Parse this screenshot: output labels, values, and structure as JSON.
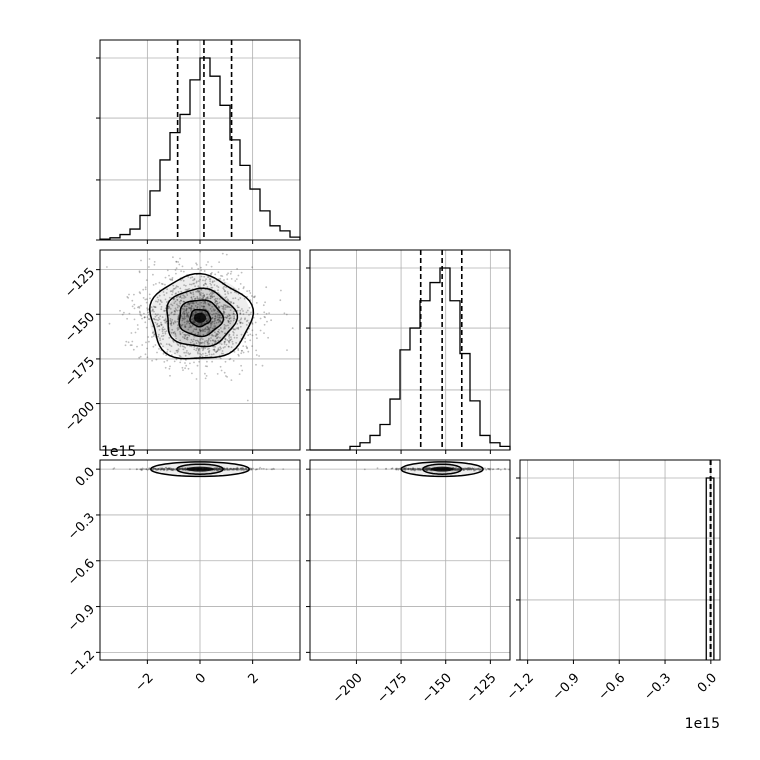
{
  "chart_data": {
    "type": "corner",
    "grid": true,
    "colors": {
      "line": "#000000",
      "grid": "#b0b0b0",
      "points": "#444444",
      "frame": "#000000"
    },
    "parameters": [
      {
        "index": 0,
        "range": [
          -3.8,
          3.8
        ],
        "ticks": [
          -2,
          0,
          2
        ],
        "tick_labels": [
          "−2",
          "0",
          "2"
        ]
      },
      {
        "index": 1,
        "range": [
          -226,
          -114
        ],
        "ticks": [
          -200,
          -175,
          -150,
          -125
        ],
        "tick_labels": [
          "−200",
          "−175",
          "−150",
          "−125"
        ]
      },
      {
        "index": 2,
        "range": [
          -1.25,
          0.06
        ],
        "ticks": [
          -1.2,
          -0.9,
          -0.6,
          -0.3,
          0.0
        ],
        "tick_labels": [
          "−1.2",
          "−0.9",
          "−0.6",
          "−0.3",
          "0.0"
        ],
        "offset_text": "1e15"
      }
    ],
    "histograms": [
      {
        "param": 0,
        "bins": [
          -3.8,
          -3.42,
          -3.04,
          -2.66,
          -2.28,
          -1.9,
          -1.52,
          -1.14,
          -0.76,
          -0.38,
          0.0,
          0.38,
          0.76,
          1.14,
          1.52,
          1.9,
          2.28,
          2.66,
          3.04,
          3.42,
          3.8
        ],
        "counts": [
          0.005,
          0.012,
          0.03,
          0.06,
          0.135,
          0.27,
          0.44,
          0.59,
          0.69,
          0.88,
          1.0,
          0.9,
          0.74,
          0.55,
          0.41,
          0.28,
          0.16,
          0.078,
          0.05,
          0.016
        ],
        "quantiles": [
          -0.85,
          0.15,
          1.2
        ]
      },
      {
        "param": 1,
        "bins": [
          -226,
          -220.4,
          -214.8,
          -209.2,
          -203.6,
          -198,
          -192.4,
          -186.8,
          -181.2,
          -175.6,
          -170,
          -164.4,
          -158.8,
          -153.2,
          -147.6,
          -142,
          -136.4,
          -130.8,
          -125.2,
          -119.6,
          -114
        ],
        "counts": [
          0.0,
          0.0,
          0.0,
          0.0,
          0.02,
          0.04,
          0.08,
          0.14,
          0.28,
          0.55,
          0.67,
          0.82,
          0.92,
          1.0,
          0.82,
          0.53,
          0.27,
          0.08,
          0.04,
          0.02
        ],
        "quantiles": [
          -164,
          -152,
          -141
        ]
      },
      {
        "param": 2,
        "bins": [
          -0.03,
          0.0,
          0.02
        ],
        "counts": [
          1.0,
          1.0
        ],
        "quantiles": [
          -0.003,
          0.0
        ]
      }
    ],
    "scatter_panels": [
      {
        "x_param": 0,
        "y_param": 1,
        "center": [
          0.0,
          -152
        ],
        "spread": [
          1.1,
          13.5
        ],
        "contour_radii": [
          0.35,
          0.75,
          1.2,
          1.75
        ]
      },
      {
        "x_param": 0,
        "y_param": 2,
        "center": [
          0.0,
          0.0
        ],
        "spread": [
          1.1,
          0.0035
        ],
        "contour_radii": [
          0.8,
          1.7
        ]
      },
      {
        "x_param": 1,
        "y_param": 2,
        "center": [
          -152,
          0.0
        ],
        "spread": [
          13.5,
          0.0035
        ],
        "contour_radii": [
          0.8,
          1.7
        ]
      }
    ]
  }
}
